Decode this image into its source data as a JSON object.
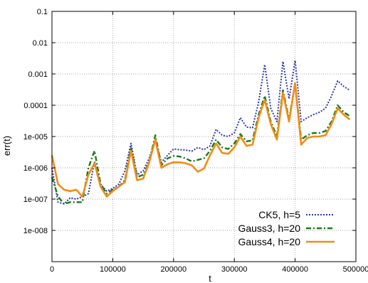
{
  "chart_data": {
    "type": "line",
    "title": "",
    "xlabel": "t",
    "ylabel": "err(t)",
    "xlim": [
      0,
      500000
    ],
    "ylim": [
      1e-09,
      0.1
    ],
    "yscale": "log",
    "grid": true,
    "legend_position": "bottom-right",
    "x_ticks": [
      0,
      100000,
      200000,
      300000,
      400000,
      500000
    ],
    "x_tick_labels": [
      "0",
      "100000",
      "200000",
      "300000",
      "400000",
      "500000"
    ],
    "y_ticks": [
      1e-09,
      1e-08,
      1e-07,
      1e-06,
      1e-05,
      0.0001,
      0.001,
      0.01,
      0.1
    ],
    "y_tick_labels": [
      "",
      "1e-008",
      "1e-007",
      "1e-006",
      "1e-005",
      "0.0001",
      "0.001",
      "0.01",
      "0.1"
    ],
    "series": [
      {
        "name": "CK5, h=5",
        "color": "#2b35b8",
        "style": "dotted",
        "x": [
          0,
          10000,
          20000,
          30000,
          40000,
          50000,
          60000,
          70000,
          80000,
          90000,
          100000,
          110000,
          120000,
          130000,
          140000,
          150000,
          160000,
          170000,
          180000,
          190000,
          200000,
          210000,
          220000,
          230000,
          240000,
          250000,
          260000,
          270000,
          280000,
          290000,
          300000,
          310000,
          320000,
          330000,
          340000,
          350000,
          360000,
          370000,
          380000,
          390000,
          400000,
          410000,
          420000,
          430000,
          440000,
          450000,
          460000,
          470000,
          480000,
          490000
        ],
        "y": [
          1e-06,
          8e-08,
          7e-08,
          1.1e-07,
          1e-07,
          1.2e-07,
          1.5e-07,
          1.6e-06,
          3e-07,
          1.8e-07,
          2.2e-07,
          3e-07,
          8e-07,
          6e-06,
          6e-07,
          8e-07,
          2e-06,
          8e-06,
          1.5e-06,
          2.5e-06,
          4e-06,
          3.8e-06,
          3.7e-06,
          3.4e-06,
          4.5e-06,
          3.8e-06,
          5e-06,
          1.7e-05,
          1.1e-05,
          1e-05,
          1.3e-05,
          4e-05,
          2e-05,
          1.9e-05,
          0.00013,
          0.002,
          8e-05,
          3e-05,
          0.0025,
          0.00016,
          0.0027,
          3e-05,
          4e-05,
          5e-05,
          6e-05,
          8e-05,
          0.0002,
          0.0006,
          0.0004,
          0.0003
        ]
      },
      {
        "name": "Gauss3, h=20",
        "color": "#1a7a1a",
        "style": "dash-dot",
        "x": [
          0,
          10000,
          20000,
          30000,
          40000,
          50000,
          60000,
          70000,
          80000,
          90000,
          100000,
          110000,
          120000,
          130000,
          140000,
          150000,
          160000,
          170000,
          180000,
          190000,
          200000,
          210000,
          220000,
          230000,
          240000,
          250000,
          260000,
          270000,
          280000,
          290000,
          300000,
          310000,
          320000,
          330000,
          340000,
          350000,
          360000,
          370000,
          380000,
          390000,
          400000,
          410000,
          420000,
          430000,
          440000,
          450000,
          460000,
          470000,
          480000,
          490000
        ],
        "y": [
          5e-07,
          1.2e-07,
          7e-08,
          8e-08,
          8e-08,
          8e-08,
          1e-06,
          3.5e-06,
          3e-07,
          1.5e-07,
          2e-07,
          2.5e-07,
          4e-07,
          4.5e-06,
          5e-07,
          6e-07,
          1.5e-06,
          1.1e-05,
          1.2e-06,
          2e-06,
          2.4e-06,
          2.3e-06,
          2e-06,
          1.6e-06,
          1.8e-06,
          2e-06,
          3.5e-06,
          8e-06,
          4.5e-06,
          4e-06,
          6e-06,
          1.2e-05,
          7e-06,
          7.5e-06,
          5e-05,
          0.0002,
          3e-05,
          1e-05,
          0.0003,
          3.5e-05,
          0.0005,
          8e-06,
          1.1e-05,
          1.3e-05,
          1.3e-05,
          1.5e-05,
          3e-05,
          0.0001,
          6e-05,
          4.5e-05
        ]
      },
      {
        "name": "Gauss4, h=20",
        "color": "#f28c14",
        "style": "solid",
        "x": [
          0,
          10000,
          20000,
          30000,
          40000,
          50000,
          60000,
          70000,
          80000,
          90000,
          100000,
          110000,
          120000,
          130000,
          140000,
          150000,
          160000,
          170000,
          180000,
          190000,
          200000,
          210000,
          220000,
          230000,
          240000,
          250000,
          260000,
          270000,
          280000,
          290000,
          300000,
          310000,
          320000,
          330000,
          340000,
          350000,
          360000,
          370000,
          380000,
          390000,
          400000,
          410000,
          420000,
          430000,
          440000,
          450000,
          460000,
          470000,
          480000,
          490000
        ],
        "y": [
          2.5e-06,
          3e-07,
          2e-07,
          1.8e-07,
          2e-07,
          1.2e-07,
          6e-07,
          1.4e-06,
          2.5e-07,
          1.2e-07,
          1.8e-07,
          2.5e-07,
          3.5e-07,
          3.5e-06,
          4e-07,
          4.5e-07,
          1.5e-06,
          8e-06,
          1e-06,
          1.3e-06,
          1.5e-06,
          1.5e-06,
          1.4e-06,
          1.2e-06,
          7.5e-07,
          9.5e-07,
          2.5e-06,
          6e-06,
          3e-06,
          2.8e-06,
          4.5e-06,
          1e-05,
          5e-06,
          5.5e-06,
          4e-05,
          0.00015,
          2.5e-05,
          8e-06,
          0.00025,
          3e-05,
          0.0005,
          5.5e-06,
          9e-06,
          1e-05,
          1e-05,
          1.1e-05,
          2.5e-05,
          8e-05,
          5e-05,
          3.5e-05
        ]
      }
    ]
  }
}
